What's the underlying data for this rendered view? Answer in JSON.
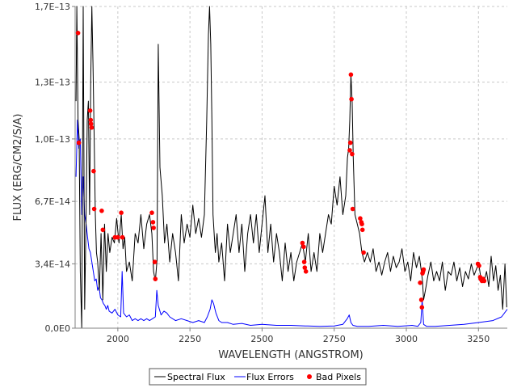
{
  "chart_data": {
    "type": "line",
    "title": "",
    "xlabel": "WAVELENGTH (ANGSTROM)",
    "ylabel": "FLUX (ERG/CM2/S/A)",
    "xlim": [
      1852,
      3350
    ],
    "ylim": [
      0,
      1.7e-13
    ],
    "x_ticks": [
      2000,
      2250,
      2500,
      2750,
      3000,
      3250
    ],
    "x_tick_labels": [
      "2000",
      "2250",
      "2500",
      "2750",
      "3000",
      "3250"
    ],
    "y_ticks": [
      0,
      3.4e-14,
      6.7e-14,
      1e-13,
      1.3e-13,
      1.7e-13
    ],
    "y_tick_labels": [
      "0,0E0",
      "3,4E–14",
      "6,7E–14",
      "1,0E–13",
      "1,3E–13",
      "1,7E–13"
    ],
    "grid": true,
    "legend_position": "bottom",
    "series": [
      {
        "name": "Spectral Flux",
        "color": "#000000",
        "kind": "line",
        "x": [
          1855,
          1858,
          1862,
          1866,
          1870,
          1875,
          1880,
          1885,
          1890,
          1894,
          1898,
          1902,
          1906,
          1910,
          1914,
          1918,
          1922,
          1926,
          1930,
          1936,
          1942,
          1948,
          1954,
          1960,
          1966,
          1972,
          1980,
          1988,
          1996,
          2004,
          2012,
          2018,
          2024,
          2030,
          2040,
          2050,
          2060,
          2070,
          2080,
          2090,
          2100,
          2110,
          2118,
          2124,
          2130,
          2136,
          2140,
          2146,
          2154,
          2162,
          2170,
          2180,
          2190,
          2200,
          2210,
          2220,
          2230,
          2240,
          2250,
          2260,
          2270,
          2280,
          2290,
          2300,
          2308,
          2314,
          2318,
          2322,
          2326,
          2330,
          2334,
          2338,
          2344,
          2350,
          2360,
          2370,
          2380,
          2390,
          2400,
          2410,
          2420,
          2430,
          2440,
          2450,
          2460,
          2470,
          2480,
          2490,
          2500,
          2510,
          2520,
          2530,
          2540,
          2550,
          2560,
          2570,
          2580,
          2590,
          2600,
          2610,
          2620,
          2630,
          2640,
          2650,
          2660,
          2670,
          2680,
          2690,
          2700,
          2710,
          2720,
          2730,
          2740,
          2750,
          2760,
          2770,
          2780,
          2790,
          2796,
          2800,
          2804,
          2808,
          2812,
          2816,
          2822,
          2830,
          2838,
          2846,
          2855,
          2865,
          2875,
          2885,
          2895,
          2905,
          2915,
          2925,
          2935,
          2945,
          2955,
          2965,
          2975,
          2985,
          2995,
          3005,
          3015,
          3025,
          3035,
          3045,
          3052,
          3056,
          3060,
          3066,
          3075,
          3085,
          3095,
          3105,
          3115,
          3125,
          3135,
          3145,
          3155,
          3165,
          3175,
          3185,
          3195,
          3205,
          3215,
          3225,
          3235,
          3245,
          3252,
          3258,
          3264,
          3270,
          3278,
          3286,
          3294,
          3302,
          3310,
          3318,
          3326,
          3334,
          3342,
          3348
        ],
        "y": [
          1.2e-13,
          1.7e-13,
          1.1e-13,
          1e-13,
          3e-14,
          0,
          1.7e-13,
          1e-14,
          6e-14,
          1.1e-13,
          1.2e-13,
          6e-14,
          1.3e-13,
          1.7e-13,
          1.4e-13,
          1e-13,
          6e-14,
          4e-14,
          3.5e-14,
          2e-14,
          5e-14,
          1.5e-14,
          5.5e-14,
          3e-14,
          5e-14,
          4e-14,
          4.8e-14,
          4.5e-14,
          5.8e-14,
          4.5e-14,
          6e-14,
          4.2e-14,
          4.8e-14,
          3e-14,
          3.5e-14,
          2.5e-14,
          5e-14,
          4.5e-14,
          6e-14,
          4.2e-14,
          5.5e-14,
          6e-14,
          5e-14,
          3e-14,
          2.5e-14,
          3.6e-14,
          1.5e-13,
          8.5e-14,
          7e-14,
          4.5e-14,
          5.5e-14,
          3.5e-14,
          5e-14,
          4e-14,
          2.5e-14,
          6e-14,
          4.5e-14,
          5.5e-14,
          4.8e-14,
          6.5e-14,
          5e-14,
          5.8e-14,
          4.8e-14,
          6e-14,
          1.1e-13,
          1.55e-13,
          1.7e-13,
          1.5e-13,
          1.1e-13,
          6e-14,
          5e-14,
          4e-14,
          5e-14,
          3.5e-14,
          4.5e-14,
          2.5e-14,
          5.5e-14,
          4e-14,
          5e-14,
          6e-14,
          4e-14,
          5.5e-14,
          3e-14,
          5e-14,
          6e-14,
          4.5e-14,
          6e-14,
          4e-14,
          5.5e-14,
          7e-14,
          4e-14,
          5.5e-14,
          3.5e-14,
          5e-14,
          4e-14,
          2.5e-14,
          4.5e-14,
          3e-14,
          4e-14,
          2.5e-14,
          3.5e-14,
          4e-14,
          4.5e-14,
          3.5e-14,
          5e-14,
          3e-14,
          4e-14,
          3e-14,
          5e-14,
          4e-14,
          5e-14,
          6e-14,
          5.5e-14,
          7.5e-14,
          6.5e-14,
          8e-14,
          6e-14,
          7e-14,
          9e-14,
          9.5e-14,
          1.1e-13,
          1.34e-13,
          1.2e-13,
          9e-14,
          6e-14,
          5.5e-14,
          5e-14,
          4e-14,
          3.5e-14,
          4e-14,
          3.5e-14,
          4.2e-14,
          3e-14,
          3.5e-14,
          2.8e-14,
          3.5e-14,
          4e-14,
          3e-14,
          3.8e-14,
          3.2e-14,
          3.5e-14,
          4.2e-14,
          3e-14,
          3.5e-14,
          2.5e-14,
          4e-14,
          3.2e-14,
          3.8e-14,
          3e-14,
          2.5e-14,
          1.5e-14,
          2e-14,
          2.8e-14,
          3.5e-14,
          2.5e-14,
          3e-14,
          2.5e-14,
          3.5e-14,
          2e-14,
          3e-14,
          2.8e-14,
          3.5e-14,
          2.5e-14,
          3.2e-14,
          2.2e-14,
          3e-14,
          2.6e-14,
          3.4e-14,
          2.8e-14,
          3.2e-14,
          3.3e-14,
          2.7e-14,
          2.6e-14,
          2.5e-14,
          3e-14,
          2.2e-14,
          3.8e-14,
          2.5e-14,
          3.3e-14,
          2e-14,
          2.8e-14,
          1e-14,
          3.4e-14,
          1.1e-14
        ]
      },
      {
        "name": "Flux Errors",
        "color": "#0000ff",
        "kind": "line",
        "x": [
          1855,
          1860,
          1865,
          1870,
          1875,
          1880,
          1885,
          1890,
          1895,
          1900,
          1905,
          1910,
          1915,
          1920,
          1925,
          1930,
          1935,
          1940,
          1945,
          1950,
          1955,
          1960,
          1965,
          1970,
          1980,
          1990,
          2000,
          2010,
          2015,
          2020,
          2030,
          2040,
          2050,
          2060,
          2070,
          2080,
          2090,
          2100,
          2110,
          2120,
          2130,
          2135,
          2140,
          2150,
          2160,
          2170,
          2180,
          2200,
          2220,
          2240,
          2260,
          2280,
          2300,
          2310,
          2320,
          2326,
          2332,
          2340,
          2350,
          2360,
          2380,
          2400,
          2430,
          2460,
          2500,
          2550,
          2600,
          2650,
          2700,
          2750,
          2780,
          2795,
          2802,
          2808,
          2815,
          2830,
          2870,
          2920,
          2970,
          3020,
          3040,
          3050,
          3055,
          3060,
          3070,
          3100,
          3150,
          3200,
          3250,
          3300,
          3330,
          3350
        ],
        "y": [
          8e-14,
          1.1e-13,
          9.5e-14,
          1e-13,
          6e-14,
          8e-14,
          6e-14,
          5.5e-14,
          4.8e-14,
          4.2e-14,
          4e-14,
          3.5e-14,
          3e-14,
          2.5e-14,
          2.6e-14,
          2e-14,
          2.2e-14,
          1.6e-14,
          1.5e-14,
          1.3e-14,
          1.2e-14,
          1e-14,
          1.2e-14,
          9e-15,
          8e-15,
          1e-14,
          7e-15,
          6e-15,
          3e-14,
          8e-15,
          6e-15,
          7e-15,
          4e-15,
          5e-15,
          4e-15,
          5e-15,
          4e-15,
          5e-15,
          4e-15,
          5e-15,
          6e-15,
          2e-14,
          1.2e-14,
          7e-15,
          9e-15,
          8e-15,
          6e-15,
          4e-15,
          5e-15,
          4e-15,
          3e-15,
          4e-15,
          3e-15,
          6e-15,
          1e-14,
          1.5e-14,
          1.3e-14,
          8e-15,
          4e-15,
          3e-15,
          3e-15,
          2e-15,
          2.5e-15,
          1.5e-15,
          2e-15,
          1.5e-15,
          1.5e-15,
          1.2e-15,
          1e-15,
          1.2e-15,
          2e-15,
          5e-15,
          7e-15,
          3e-15,
          1.5e-15,
          1e-15,
          1e-15,
          1.5e-15,
          1e-15,
          1.5e-15,
          1e-15,
          3e-15,
          1.5e-14,
          2e-15,
          1e-15,
          1e-15,
          1.5e-15,
          2e-15,
          3e-15,
          4e-15,
          6e-15,
          1e-14
        ]
      },
      {
        "name": "Bad Pixels",
        "color": "#ff0000",
        "kind": "scatter",
        "x": [
          1862,
          1865,
          1904,
          1906,
          1907,
          1909,
          1916,
          1918,
          1944,
          1948,
          1990,
          2000,
          2012,
          2016,
          2118,
          2122,
          2124,
          2128,
          2130,
          2640,
          2644,
          2646,
          2648,
          2652,
          2804,
          2806,
          2808,
          2810,
          2812,
          2814,
          2840,
          2844,
          2846,
          2848,
          2852,
          3048,
          3052,
          3054,
          3056,
          3058,
          3060,
          3248,
          3252,
          3256,
          3258,
          3262,
          3266,
          3270
        ],
        "y": [
          1.56e-13,
          9.8e-14,
          1.15e-13,
          1.1e-13,
          1.08e-13,
          1.06e-13,
          8.3e-14,
          6.3e-14,
          6.2e-14,
          5.2e-14,
          4.8e-14,
          4.8e-14,
          6.1e-14,
          4.8e-14,
          6.1e-14,
          5.6e-14,
          5.3e-14,
          3.5e-14,
          2.6e-14,
          4.5e-14,
          4.3e-14,
          3.5e-14,
          3.2e-14,
          3e-14,
          9.4e-14,
          9.8e-14,
          1.34e-13,
          1.21e-13,
          9.2e-14,
          6.3e-14,
          5.8e-14,
          5.6e-14,
          5.5e-14,
          5.2e-14,
          4e-14,
          2.4e-14,
          1.5e-14,
          1.1e-14,
          2.9e-14,
          3e-14,
          3.1e-14,
          3.4e-14,
          3.3e-14,
          2.7e-14,
          2.6e-14,
          2.5e-14,
          2.6e-14,
          2.5e-14
        ]
      }
    ]
  }
}
